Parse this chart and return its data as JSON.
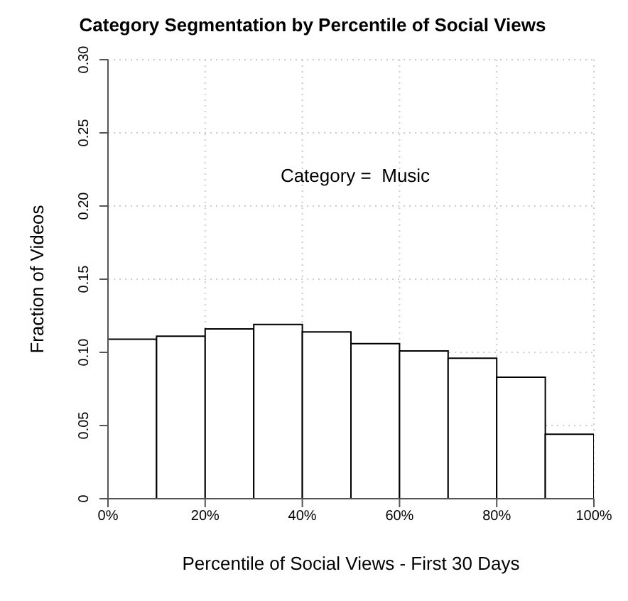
{
  "chart_data": {
    "type": "histogram",
    "title": "Category Segmentation by Percentile of Social Views",
    "xlabel": "Percentile of Social Views - First 30 Days",
    "ylabel": "Fraction of Videos",
    "annotations": [
      "Category =  Music"
    ],
    "bins": [
      0,
      10,
      20,
      30,
      40,
      50,
      60,
      70,
      80,
      90,
      100
    ],
    "values": [
      0.109,
      0.111,
      0.116,
      0.119,
      0.114,
      0.106,
      0.101,
      0.096,
      0.083,
      0.044
    ],
    "color": "#ffffff",
    "xlim": [
      0,
      100
    ],
    "xticks": [
      {
        "value": 0,
        "label": "0%"
      },
      {
        "value": 20,
        "label": "20%"
      },
      {
        "value": 40,
        "label": "40%"
      },
      {
        "value": 60,
        "label": "60%"
      },
      {
        "value": 80,
        "label": "80%"
      },
      {
        "value": 100,
        "label": "100%"
      }
    ],
    "ylim": [
      0,
      0.3
    ],
    "yticks": [
      {
        "value": 0,
        "label": "0"
      },
      {
        "value": 0.05,
        "label": "0.05"
      },
      {
        "value": 0.1,
        "label": "0.10"
      },
      {
        "value": 0.15,
        "label": "0.15"
      },
      {
        "value": 0.2,
        "label": "0.20"
      },
      {
        "value": 0.25,
        "label": "0.25"
      },
      {
        "value": 0.3,
        "label": "0.30"
      }
    ],
    "grid": true
  }
}
